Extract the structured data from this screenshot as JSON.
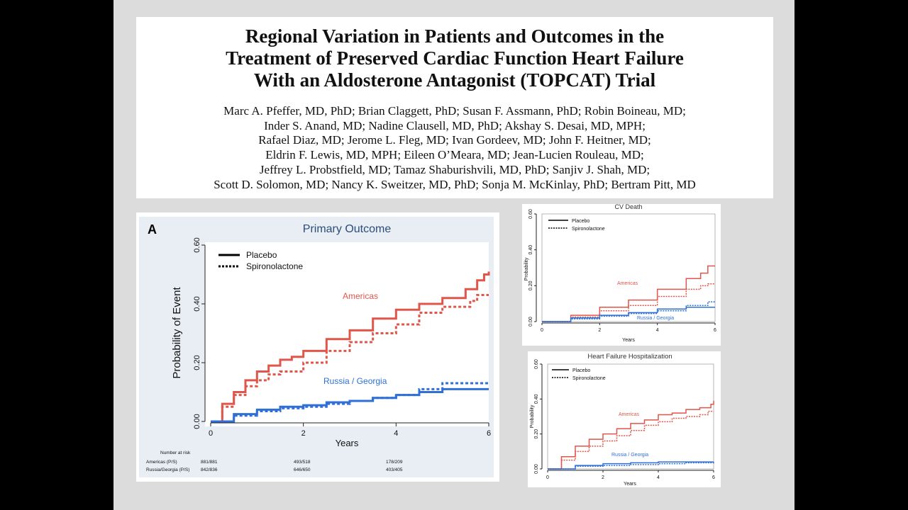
{
  "paper": {
    "title_lines": [
      "Regional Variation in Patients and Outcomes in the",
      "Treatment of Preserved Cardiac Function Heart Failure",
      "With an Aldosterone Antagonist (TOPCAT) Trial"
    ],
    "author_lines": [
      "Marc A. Pfeffer, MD, PhD; Brian Claggett, PhD; Susan F. Assmann, PhD; Robin Boineau, MD;",
      "Inder S. Anand, MD; Nadine Clausell, MD, PhD; Akshay S. Desai, MD, MPH;",
      "Rafael Diaz, MD; Jerome L. Fleg, MD; Ivan Gordeev, MD; John F. Heitner, MD;",
      "Eldrin F. Lewis, MD, MPH; Eileen O’Meara, MD; Jean-Lucien Rouleau, MD;",
      "Jeffrey L. Probstfield, MD; Tamaz Shaburishvili, MD, PhD; Sanjiv J. Shah, MD;",
      "Scott D. Solomon, MD; Nancy K. Sweitzer, MD, PhD; Sonja M. McKinlay, PhD; Bertram Pitt, MD"
    ]
  },
  "colors": {
    "americas": "#e0564a",
    "russia_georgia": "#2f6fd6",
    "legend": "#000000"
  },
  "chart_data": [
    {
      "type": "line",
      "panel_letter": "A",
      "title": "Primary Outcome",
      "xlabel": "Years",
      "ylabel": "Probability of Event",
      "xlim": [
        0,
        6
      ],
      "ylim": [
        0,
        0.6
      ],
      "xticks": [
        0,
        2,
        4,
        6
      ],
      "yticks": [
        "0.00",
        "0.20",
        "0.40",
        "0.60"
      ],
      "legend": {
        "placement": "top-left",
        "entries": [
          "Placebo",
          "Spironolactone"
        ]
      },
      "annotations": [
        "Americas",
        "Russia / Georgia"
      ],
      "series": [
        {
          "name": "Americas Placebo",
          "group": "americas",
          "style": "solid",
          "x": [
            0,
            0.25,
            0.5,
            0.75,
            1,
            1.25,
            1.5,
            1.75,
            2,
            2.5,
            3,
            3.5,
            4,
            4.5,
            5,
            5.5,
            5.75,
            5.9,
            6
          ],
          "y": [
            0,
            0.06,
            0.1,
            0.14,
            0.17,
            0.19,
            0.21,
            0.22,
            0.24,
            0.28,
            0.31,
            0.35,
            0.38,
            0.4,
            0.42,
            0.45,
            0.48,
            0.5,
            0.51
          ]
        },
        {
          "name": "Americas Spironolactone",
          "group": "americas",
          "style": "dashed",
          "x": [
            0,
            0.25,
            0.5,
            0.75,
            1,
            1.25,
            1.5,
            2,
            2.5,
            3,
            3.5,
            4,
            4.5,
            5,
            5.5,
            5.6,
            5.75,
            6
          ],
          "y": [
            0,
            0.05,
            0.09,
            0.12,
            0.14,
            0.16,
            0.17,
            0.2,
            0.24,
            0.27,
            0.3,
            0.33,
            0.37,
            0.39,
            0.39,
            0.41,
            0.43,
            0.43
          ]
        },
        {
          "name": "Russia / Georgia Placebo",
          "group": "russia_georgia",
          "style": "solid",
          "x": [
            0,
            0.5,
            1,
            1.5,
            2,
            2.5,
            3,
            3.5,
            4,
            4.5,
            5,
            5.5,
            6
          ],
          "y": [
            0,
            0.025,
            0.04,
            0.05,
            0.055,
            0.065,
            0.07,
            0.08,
            0.09,
            0.1,
            0.11,
            0.11,
            0.11
          ]
        },
        {
          "name": "Russia / Georgia Spironolactone",
          "group": "russia_georgia",
          "style": "dashed",
          "x": [
            0,
            0.5,
            1,
            1.5,
            2,
            2.5,
            3,
            3.5,
            4,
            4.5,
            5,
            5.5,
            6
          ],
          "y": [
            0,
            0.02,
            0.035,
            0.045,
            0.05,
            0.06,
            0.07,
            0.08,
            0.09,
            0.11,
            0.13,
            0.13,
            0.135
          ]
        }
      ],
      "risk_table": {
        "header": "Number at risk",
        "rows": [
          {
            "label": "Americas (P/S)",
            "values": [
              "881/881",
              "493/518",
              "178/209"
            ]
          },
          {
            "label": "Russia/Georgia (P/S)",
            "values": [
              "842/836",
              "646/650",
              "403/405"
            ]
          }
        ]
      }
    },
    {
      "type": "line",
      "title": "CV Death",
      "xlabel": "Years",
      "ylabel": "Probability",
      "xlim": [
        0,
        6
      ],
      "ylim": [
        0,
        0.6
      ],
      "xticks": [
        0,
        2,
        4,
        6
      ],
      "yticks": [
        "0.00",
        "0.20",
        "0.40",
        "0.60"
      ],
      "legend": {
        "placement": "top-left",
        "entries": [
          "Placebo",
          "Spironolactone"
        ]
      },
      "annotations": [
        "Americas",
        "Russia / Georgia"
      ],
      "series": [
        {
          "name": "Americas Placebo",
          "group": "americas",
          "style": "solid",
          "x": [
            0,
            1,
            2,
            3,
            4,
            5,
            5.5,
            5.75,
            6
          ],
          "y": [
            0,
            0.035,
            0.08,
            0.12,
            0.18,
            0.24,
            0.27,
            0.31,
            0.31
          ]
        },
        {
          "name": "Americas Spironolactone",
          "group": "americas",
          "style": "dashed",
          "x": [
            0,
            1,
            2,
            3,
            4,
            5,
            5.5,
            5.75,
            6
          ],
          "y": [
            0,
            0.025,
            0.06,
            0.09,
            0.14,
            0.18,
            0.2,
            0.21,
            0.21
          ]
        },
        {
          "name": "Russia / Georgia Placebo",
          "group": "russia_georgia",
          "style": "solid",
          "x": [
            0,
            1,
            2,
            3,
            4,
            5,
            6
          ],
          "y": [
            0,
            0.02,
            0.035,
            0.05,
            0.07,
            0.08,
            0.08
          ]
        },
        {
          "name": "Russia / Georgia Spironolactone",
          "group": "russia_georgia",
          "style": "dashed",
          "x": [
            0,
            1,
            2,
            3,
            4,
            5,
            5.75,
            6
          ],
          "y": [
            0,
            0.015,
            0.03,
            0.045,
            0.06,
            0.09,
            0.11,
            0.11
          ]
        }
      ]
    },
    {
      "type": "line",
      "title": "Heart Failure Hospitalization",
      "xlabel": "Years",
      "ylabel": "Probability",
      "xlim": [
        0,
        6
      ],
      "ylim": [
        0,
        0.6
      ],
      "xticks": [
        0,
        2,
        4,
        6
      ],
      "yticks": [
        "0.00",
        "0.20",
        "0.40",
        "0.60"
      ],
      "legend": {
        "placement": "top-left",
        "entries": [
          "Placebo",
          "Spironolactone"
        ]
      },
      "annotations": [
        "Americas",
        "Russia / Georgia"
      ],
      "series": [
        {
          "name": "Americas Placebo",
          "group": "americas",
          "style": "solid",
          "x": [
            0,
            0.5,
            1,
            1.5,
            2,
            2.5,
            3,
            3.5,
            4,
            4.5,
            5,
            5.5,
            5.9,
            6
          ],
          "y": [
            0,
            0.07,
            0.13,
            0.17,
            0.2,
            0.23,
            0.26,
            0.28,
            0.31,
            0.32,
            0.34,
            0.35,
            0.37,
            0.39
          ]
        },
        {
          "name": "Americas Spironolactone",
          "group": "americas",
          "style": "dashed",
          "x": [
            0,
            0.5,
            1,
            1.5,
            2,
            2.5,
            3,
            3.5,
            4,
            4.5,
            5,
            5.5,
            5.8,
            6
          ],
          "y": [
            0,
            0.05,
            0.1,
            0.13,
            0.16,
            0.19,
            0.22,
            0.25,
            0.27,
            0.29,
            0.3,
            0.31,
            0.33,
            0.33
          ]
        },
        {
          "name": "Russia / Georgia Placebo",
          "group": "russia_georgia",
          "style": "solid",
          "x": [
            0,
            1,
            2,
            3,
            4,
            5,
            6
          ],
          "y": [
            0,
            0.02,
            0.03,
            0.035,
            0.04,
            0.04,
            0.04
          ]
        },
        {
          "name": "Russia / Georgia Spironolactone",
          "group": "russia_georgia",
          "style": "dashed",
          "x": [
            0,
            1,
            2,
            3,
            4,
            5,
            6
          ],
          "y": [
            0,
            0.015,
            0.02,
            0.025,
            0.03,
            0.035,
            0.04
          ]
        }
      ]
    }
  ]
}
